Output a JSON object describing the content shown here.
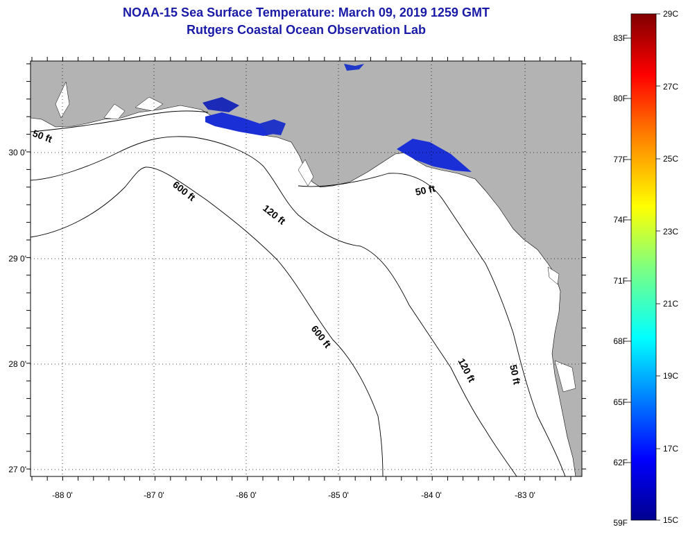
{
  "title": {
    "line1": "NOAA-15 Sea Surface Temperature:  March 09, 2019 1259 GMT",
    "line2": "Rutgers Coastal Ocean Observation Lab"
  },
  "map": {
    "lon_labels": [
      "-88 0'",
      "-87 0'",
      "-86 0'",
      "-85 0'",
      "-84 0'",
      "-83 0'"
    ],
    "lat_labels": [
      "30 0'",
      "29 0'",
      "28 0'",
      "27 0'"
    ],
    "land_color": "#b3b3b3",
    "water_color": "#ffffff",
    "depth_contours": [
      {
        "label": "50 ft"
      },
      {
        "label": "50 ft"
      },
      {
        "label": "50 ft"
      },
      {
        "label": "120 ft"
      },
      {
        "label": "120 ft"
      },
      {
        "label": "600 ft"
      },
      {
        "label": "600 ft"
      }
    ]
  },
  "colorbar": {
    "fahrenheit_labels": [
      "83F",
      "80F",
      "77F",
      "74F",
      "71F",
      "68F",
      "65F",
      "62F",
      "59F"
    ],
    "celsius_labels": [
      "29C",
      "27C",
      "25C",
      "23C",
      "21C",
      "19C",
      "17C",
      "15C"
    ],
    "min_c": 15,
    "max_c": 29,
    "palette": [
      "#00008f",
      "#0000ff",
      "#00ffff",
      "#7fff7f",
      "#ffff00",
      "#ff7f00",
      "#ff0000",
      "#800000"
    ]
  },
  "sst_patches_color": "#1a2fd6"
}
